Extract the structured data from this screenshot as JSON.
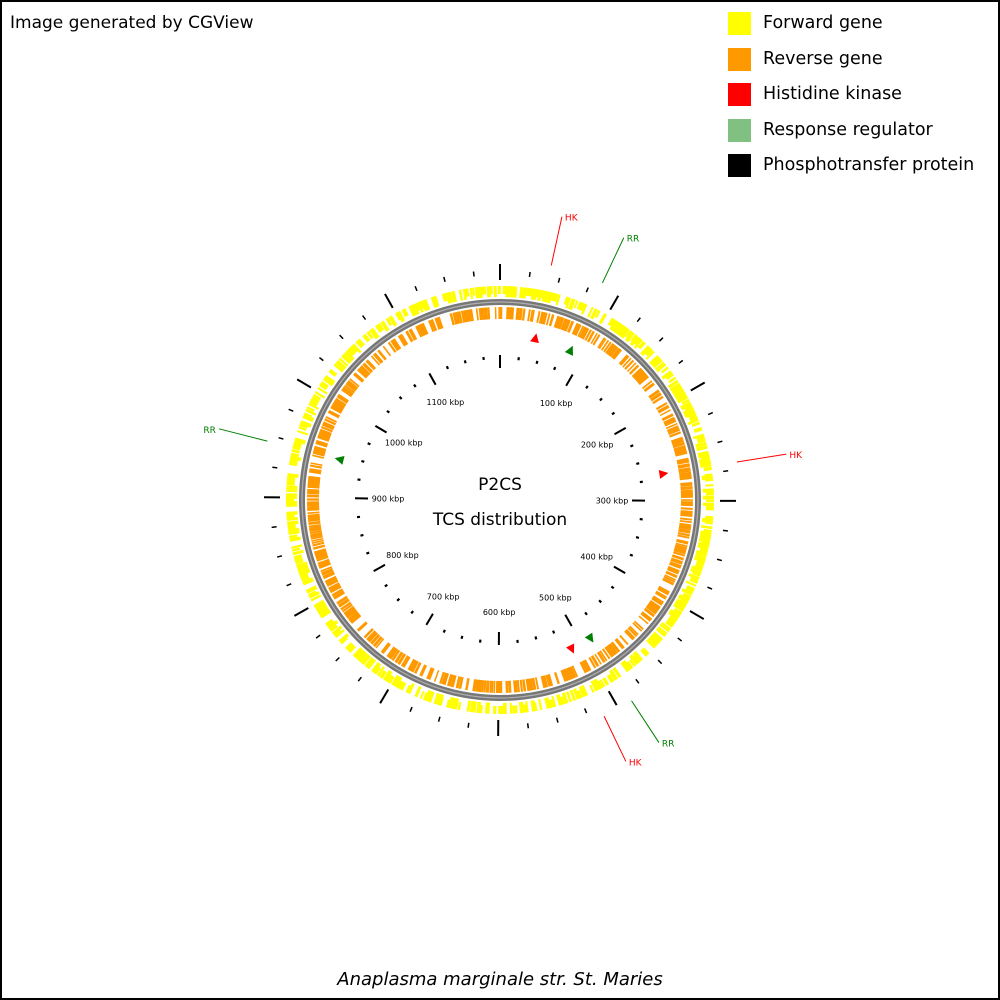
{
  "credit": "Image generated by CGView",
  "organism": "Anaplasma marginale str. St. Maries",
  "map": {
    "title_line1": "P2CS",
    "title_line2": "TCS distribution",
    "genome_length_kbp": 1197,
    "ruler": {
      "tick_labels": [
        "100 kbp",
        "200 kbp",
        "300 kbp",
        "400 kbp",
        "500 kbp",
        "600 kbp",
        "700 kbp",
        "800 kbp",
        "900 kbp",
        "1000 kbp",
        "1100 kbp"
      ],
      "label_positions_kbp": [
        100,
        200,
        300,
        400,
        500,
        600,
        700,
        800,
        900,
        1000,
        1100
      ]
    },
    "tcs_features": [
      {
        "label": "HK",
        "type": "Histidine kinase",
        "position_kbp": 41
      },
      {
        "label": "RR",
        "type": "Response regulator",
        "position_kbp": 84
      },
      {
        "label": "HK",
        "type": "Histidine kinase",
        "position_kbp": 269
      },
      {
        "label": "RR",
        "type": "Response regulator",
        "position_kbp": 488
      },
      {
        "label": "HK",
        "type": "Histidine kinase",
        "position_kbp": 513
      },
      {
        "label": "RR",
        "type": "Response regulator",
        "position_kbp": 945
      }
    ]
  },
  "legend": [
    {
      "label": "Forward gene",
      "color": "#ffff00"
    },
    {
      "label": "Reverse gene",
      "color": "#ff9900"
    },
    {
      "label": "Histidine kinase",
      "color": "#ff0000"
    },
    {
      "label": "Response regulator",
      "color": "#80c080"
    },
    {
      "label": "Phosphotransfer protein",
      "color": "#000000"
    }
  ]
}
